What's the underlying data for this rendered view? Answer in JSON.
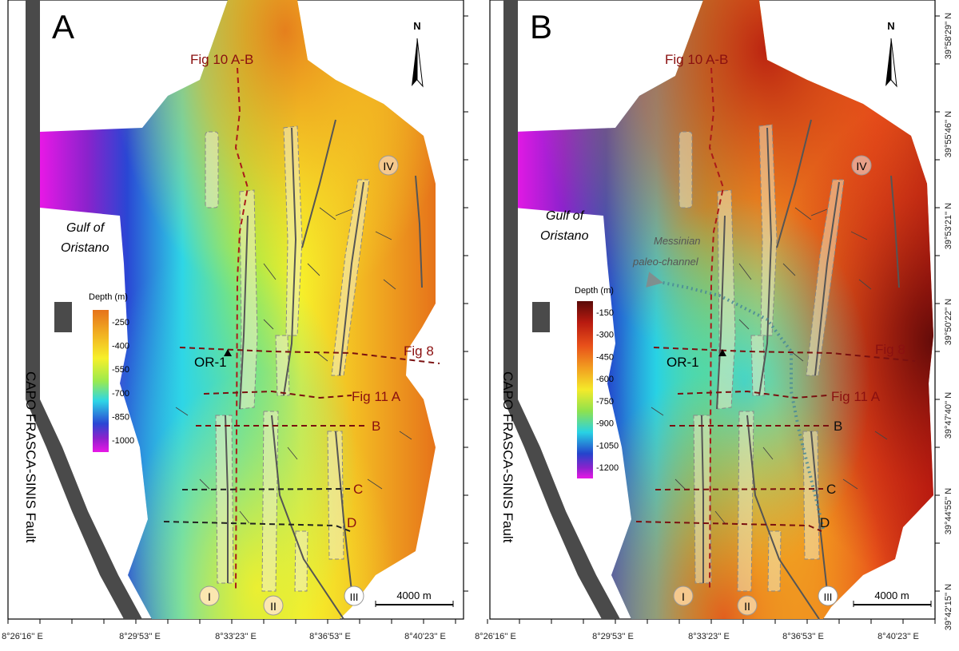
{
  "figure": {
    "panels": [
      {
        "id": "A",
        "letter": "A",
        "north": "N",
        "fig_10": "Fig 10 A-B",
        "fig_8": "Fig 8",
        "fig_11": "Fig 11 A",
        "sec_b": "B",
        "sec_c": "C",
        "sec_d": "D",
        "well": "OR-1",
        "gulf_line1": "Gulf of",
        "gulf_line2": "Oristano",
        "fault_label": "CAPO FRASCA-SINIS Fault",
        "zone_I": "I",
        "zone_II": "II",
        "zone_III": "III",
        "zone_IV": "IV",
        "scale": "4000 m",
        "legend": {
          "title": "Depth (m)",
          "ticks": [
            "-250",
            "-400",
            "-550",
            "-700",
            "-850",
            "-1000"
          ],
          "colors": [
            "#e6731a",
            "#f2b422",
            "#f6f02a",
            "#9bea4e",
            "#2ed6e6",
            "#2a46d4",
            "#8a22cc",
            "#e818e6"
          ]
        }
      },
      {
        "id": "B",
        "letter": "B",
        "north": "N",
        "fig_10": "Fig 10 A-B",
        "fig_8": "Fig 8",
        "fig_11": "Fig 11 A",
        "sec_b": "B",
        "sec_c": "C",
        "sec_d": "D",
        "well": "OR-1",
        "gulf_line1": "Gulf of",
        "gulf_line2": "Oristano",
        "fault_label": "CAPO FRASCA-SINIS Fault",
        "zone_I": "I",
        "zone_II": "II",
        "zone_III": "III",
        "zone_IV": "IV",
        "scale": "4000 m",
        "channel_line1": "Messinian",
        "channel_line2": "paleo-channel",
        "legend": {
          "title": "Depth (m)",
          "ticks": [
            "-150",
            "-300",
            "-450",
            "-600",
            "-750",
            "-900",
            "-1050",
            "-1200"
          ],
          "colors": [
            "#5a0a08",
            "#b81a10",
            "#e8501a",
            "#f2a020",
            "#f4ea2a",
            "#8ee24e",
            "#28d2e4",
            "#2444cc",
            "#8a22cc",
            "#e818e6"
          ]
        }
      }
    ],
    "lon_labels": [
      "8°26'16'' E",
      "8°29'53'' E",
      "8°33'23'' E",
      "8°36'53'' E",
      "8°40'23'' E"
    ],
    "lat_labels": [
      "39°58'29'' N",
      "39°55'46'' N",
      "39°53'21'' N",
      "39°50'22'' N",
      "39°47'40'' N",
      "39°44'55'' N",
      "39°42'15'' N"
    ]
  }
}
